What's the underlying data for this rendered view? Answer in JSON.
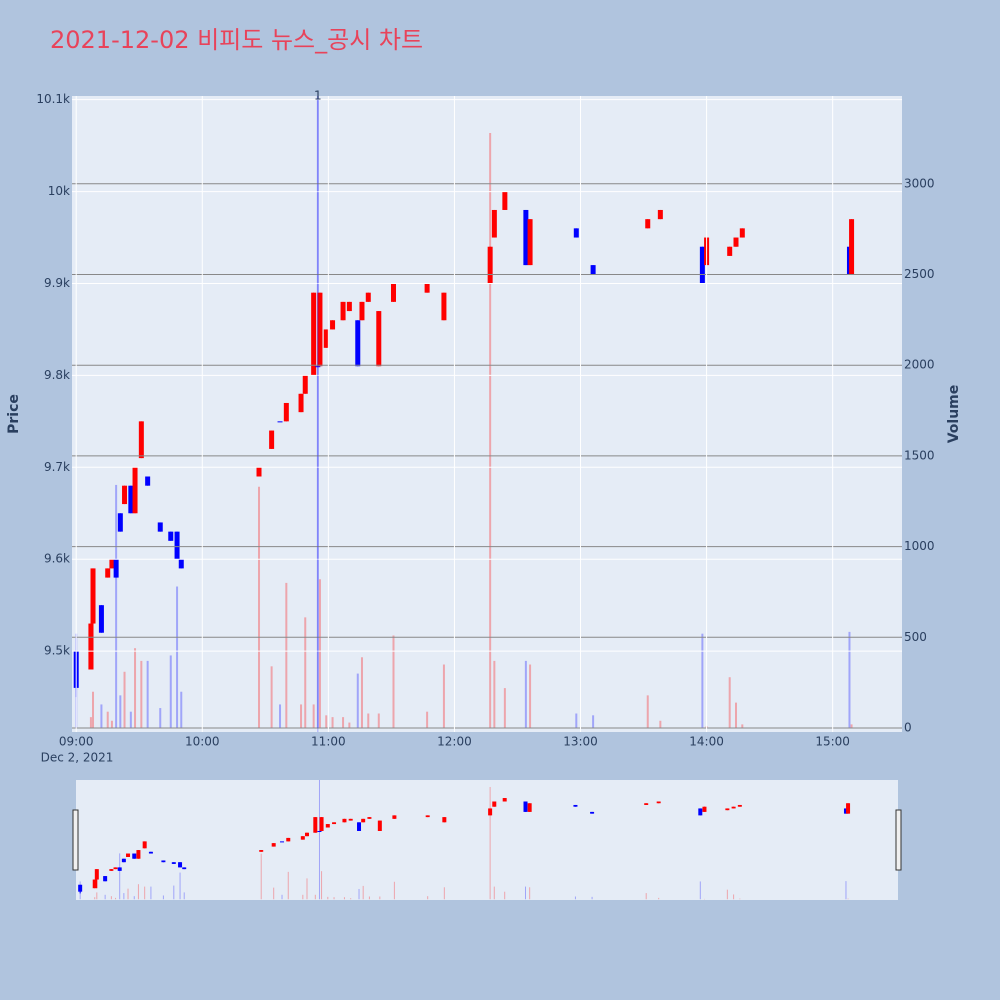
{
  "chart_data": {
    "type": "candlestick",
    "title": "2021-12-02 비피도 뉴스_공시 차트",
    "y_label": "Price",
    "y2_label": "Volume",
    "x_date_label": "Dec 2, 2021",
    "annotation": {
      "x": "10:55",
      "text": "1"
    },
    "increasing_color": "#ff0000",
    "decreasing_color": "#0000ff",
    "xlim": [
      "08:58",
      "15:33"
    ],
    "xticks": [
      "09:00",
      "10:00",
      "11:00",
      "12:00",
      "13:00",
      "14:00",
      "15:00"
    ],
    "ylim": [
      9412,
      10104
    ],
    "yticks": [
      {
        "value": 9500,
        "label": "9.5k"
      },
      {
        "value": 9600,
        "label": "9.6k"
      },
      {
        "value": 9700,
        "label": "9.7k"
      },
      {
        "value": 9800,
        "label": "9.8k"
      },
      {
        "value": 9900,
        "label": "9.9k"
      },
      {
        "value": 10000,
        "label": "10k"
      },
      {
        "value": 10100,
        "label": "10.1k"
      }
    ],
    "y2lim": [
      -22,
      3484
    ],
    "y2ticks": [
      0,
      500,
      1000,
      1500,
      2000,
      2500,
      3000
    ],
    "x": [
      "09:00",
      "09:07",
      "09:08",
      "09:12",
      "09:15",
      "09:17",
      "09:19",
      "09:21",
      "09:23",
      "09:26",
      "09:28",
      "09:31",
      "09:34",
      "09:40",
      "09:45",
      "09:48",
      "09:50",
      "10:27",
      "10:33",
      "10:37",
      "10:40",
      "10:47",
      "10:49",
      "10:53",
      "10:55",
      "10:56",
      "10:59",
      "11:02",
      "11:07",
      "11:10",
      "11:14",
      "11:16",
      "11:19",
      "11:24",
      "11:31",
      "11:47",
      "11:55",
      "12:17",
      "12:19",
      "12:24",
      "12:34",
      "12:36",
      "12:58",
      "13:06",
      "13:32",
      "13:38",
      "13:58",
      "14:00",
      "14:11",
      "14:14",
      "14:17",
      "15:08",
      "15:09"
    ],
    "open": [
      9500,
      9480,
      9530,
      9550,
      9580,
      9590,
      9600,
      9650,
      9660,
      9680,
      9650,
      9710,
      9690,
      9640,
      9630,
      9630,
      9600,
      9690,
      9720,
      9750,
      9750,
      9760,
      9780,
      9800,
      9810,
      9810,
      9830,
      9850,
      9860,
      9870,
      9860,
      9860,
      9880,
      9810,
      9880,
      9890,
      9860,
      9900,
      9950,
      9980,
      9980,
      9920,
      9960,
      9920,
      9960,
      9970,
      9940,
      9920,
      9930,
      9940,
      9950,
      9940,
      9910
    ],
    "high": [
      9500,
      9530,
      9590,
      9550,
      9590,
      9600,
      9600,
      9650,
      9680,
      9680,
      9700,
      9750,
      9690,
      9640,
      9630,
      9630,
      9600,
      9700,
      9740,
      9750,
      9770,
      9780,
      9800,
      9890,
      9810,
      9890,
      9850,
      9860,
      9880,
      9880,
      9860,
      9880,
      9890,
      9870,
      9900,
      9900,
      9890,
      9940,
      9980,
      10000,
      9980,
      9970,
      9960,
      9920,
      9970,
      9980,
      9940,
      9950,
      9940,
      9950,
      9960,
      9940,
      9970
    ],
    "low": [
      9450,
      9480,
      9480,
      9520,
      9580,
      9590,
      9580,
      9630,
      9660,
      9650,
      9650,
      9710,
      9680,
      9630,
      9620,
      9600,
      9590,
      9690,
      9720,
      9750,
      9750,
      9760,
      9780,
      9800,
      9810,
      9810,
      9830,
      9850,
      9860,
      9870,
      9810,
      9860,
      9880,
      9810,
      9880,
      9890,
      9860,
      9900,
      9950,
      9980,
      9920,
      9920,
      9950,
      9910,
      9960,
      9970,
      9900,
      9920,
      9930,
      9940,
      9950,
      9910,
      9910
    ],
    "close": [
      9460,
      9530,
      9590,
      9520,
      9590,
      9600,
      9580,
      9630,
      9680,
      9650,
      9700,
      9750,
      9680,
      9630,
      9620,
      9600,
      9590,
      9700,
      9740,
      9750,
      9770,
      9780,
      9800,
      9890,
      9810,
      9890,
      9850,
      9860,
      9880,
      9880,
      9810,
      9880,
      9890,
      9870,
      9900,
      9900,
      9890,
      9940,
      9980,
      10000,
      9920,
      9970,
      9950,
      9910,
      9970,
      9980,
      9900,
      9950,
      9940,
      9950,
      9960,
      9910,
      9970
    ],
    "volume": [
      520,
      60,
      200,
      130,
      90,
      40,
      1340,
      180,
      310,
      90,
      440,
      370,
      370,
      110,
      400,
      780,
      200,
      1330,
      340,
      130,
      800,
      130,
      610,
      130,
      3500,
      820,
      70,
      60,
      60,
      30,
      300,
      390,
      80,
      80,
      510,
      90,
      350,
      3280,
      370,
      220,
      370,
      350,
      80,
      70,
      180,
      40,
      520,
      10,
      280,
      140,
      20,
      530,
      20
    ]
  }
}
